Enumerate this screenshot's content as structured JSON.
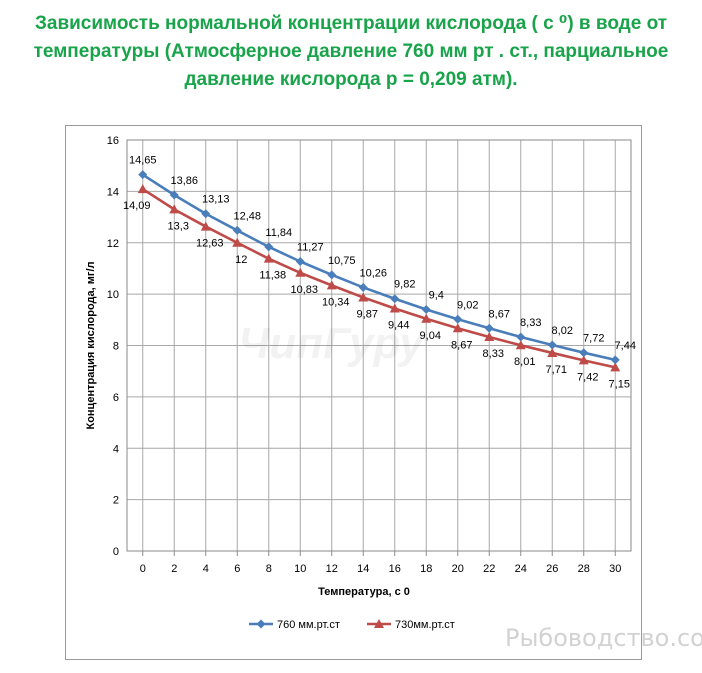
{
  "page": {
    "title_lines": [
      "Зависимость нормальной концентрации кислорода ( с ⁰) в воде от",
      "температуры (Атмосферное давление 760  мм рт . ст., парциальное",
      "давление кислорода р = 0,209 атм)."
    ],
    "watermark_center": "ЧипГуру",
    "watermark_corner": "Рыбоводство.com"
  },
  "chart_data": {
    "type": "line",
    "title": "",
    "xlabel": "Температура, с 0",
    "ylabel": "Концентрация  кислорода, мг/л",
    "x": [
      0,
      2,
      4,
      6,
      8,
      10,
      12,
      14,
      16,
      18,
      20,
      22,
      24,
      26,
      28,
      30
    ],
    "xlim": [
      -1,
      31
    ],
    "ylim": [
      0,
      16
    ],
    "x_ticks": [
      "0",
      "2",
      "4",
      "6",
      "8",
      "10",
      "12",
      "14",
      "16",
      "18",
      "20",
      "22",
      "24",
      "26",
      "28",
      "30"
    ],
    "y_ticks": [
      "0",
      "2",
      "4",
      "6",
      "8",
      "10",
      "12",
      "14",
      "16"
    ],
    "grid": true,
    "legend_position": "bottom",
    "series": [
      {
        "name": "760 мм.рт.ст",
        "color": "#4a7ebb",
        "marker": "diamond",
        "values": [
          14.65,
          13.86,
          13.13,
          12.48,
          11.84,
          11.27,
          10.75,
          10.26,
          9.82,
          9.4,
          9.02,
          8.67,
          8.33,
          8.02,
          7.72,
          7.44
        ],
        "labels": [
          "14,65",
          "13,86",
          "13,13",
          "12,48",
          "11,84",
          "11,27",
          "10,75",
          "10,26",
          "9,82",
          "9,4",
          "9,02",
          "8,67",
          "8,33",
          "8,02",
          "7,72",
          "7,44"
        ]
      },
      {
        "name": "730мм.рт.ст",
        "color": "#be4b48",
        "marker": "triangle",
        "values": [
          14.09,
          13.3,
          12.63,
          12,
          11.38,
          10.83,
          10.34,
          9.87,
          9.44,
          9.04,
          8.67,
          8.33,
          8.01,
          7.71,
          7.42,
          7.15
        ],
        "labels": [
          "14,09",
          "13,3",
          "12,63",
          "12",
          "11,38",
          "10,83",
          "10,34",
          "9,87",
          "9,44",
          "9,04",
          "8,67",
          "8,33",
          "8,01",
          "7,71",
          "7,42",
          "7,15"
        ]
      }
    ]
  }
}
